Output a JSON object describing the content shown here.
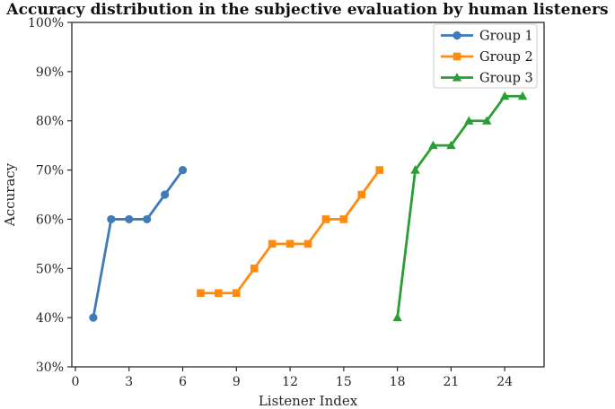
{
  "figure": {
    "title": "Accuracy distribution in the subjective evaluation by human listeners"
  },
  "chart_data": {
    "type": "line",
    "title": "Accuracy distribution in the subjective evaluation by human listeners",
    "xlabel": "Listener Index",
    "ylabel": "Accuracy",
    "xlim": [
      -0.2,
      26.2
    ],
    "ylim": [
      30,
      100
    ],
    "xticks": [
      0,
      3,
      6,
      9,
      12,
      15,
      18,
      21,
      24
    ],
    "yticks": [
      30,
      40,
      50,
      60,
      70,
      80,
      90,
      100
    ],
    "ytick_suffix": "%",
    "grid": false,
    "legend_position": "upper right",
    "axis_color": "#2a2a2a",
    "series": [
      {
        "name": "Group 1",
        "color": "#3d7cb8",
        "marker": "circle",
        "x": [
          1,
          2,
          3,
          4,
          5,
          6
        ],
        "values": [
          40,
          60,
          60,
          60,
          65,
          70
        ]
      },
      {
        "name": "Group 2",
        "color": "#ff8c0e",
        "marker": "square",
        "x": [
          7,
          8,
          9,
          10,
          11,
          12,
          13,
          14,
          15,
          16,
          17
        ],
        "values": [
          45,
          45,
          45,
          50,
          55,
          55,
          55,
          60,
          60,
          65,
          70
        ]
      },
      {
        "name": "Group 3",
        "color": "#2a9e34",
        "marker": "triangle",
        "x": [
          18,
          19,
          20,
          21,
          22,
          23,
          24,
          25
        ],
        "values": [
          40,
          70,
          75,
          75,
          80,
          80,
          85,
          85
        ]
      }
    ]
  }
}
